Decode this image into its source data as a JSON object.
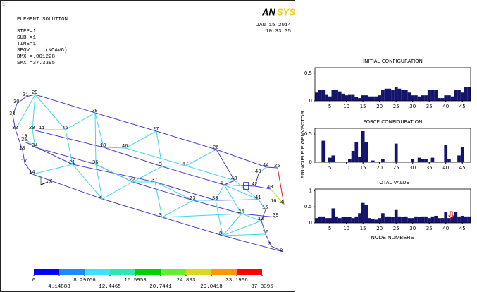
{
  "ansys": {
    "corner": "1",
    "header": "ELEMENT SOLUTION",
    "step": "STEP=1",
    "sub": "SUB =1",
    "time": "TIME=1",
    "seqv": "SEQV",
    "navg": "(NOAVG)",
    "dmx": "DMX =.001228",
    "smx": "SMX =37.3395",
    "date": "JAN 15 2014",
    "clock": "10:33:35",
    "logo": "AN",
    "logo_sys": "SYS",
    "axis_x": "X",
    "node_labels": [
      "31",
      "29",
      "30",
      "33",
      "32",
      "20",
      "11",
      "19",
      "35",
      "45",
      "28",
      "34",
      "18",
      "10",
      "46",
      "27",
      "17",
      "21",
      "36",
      "9",
      "47",
      "14",
      "26",
      "22",
      "37",
      "44",
      "25",
      "48",
      "43",
      "5",
      "42",
      "40",
      "23",
      "38",
      "41",
      "16",
      "4",
      "2",
      "3",
      "15",
      "24",
      "39",
      "13",
      "12",
      "8",
      "7",
      "6"
    ],
    "colorbar": {
      "ticks": [
        0,
        4.14883,
        8.29766,
        12.4465,
        16.5953,
        20.7441,
        24.893,
        29.0418,
        33.1906,
        37.3395
      ],
      "colors": [
        "#0000ff",
        "#1a8cff",
        "#40e0ff",
        "#2ee8b0",
        "#00d000",
        "#66ee33",
        "#d8d820",
        "#ff9900",
        "#ff0000"
      ]
    }
  },
  "y_axis_label": "PRINCIPLE EIGENVECTOR",
  "x_axis_label": "NODE NUMBERS",
  "chart_data": [
    {
      "type": "bar",
      "title": "INITIAL CONFIGURATION",
      "color": "#14146e",
      "x": [
        1,
        2,
        3,
        4,
        5,
        6,
        7,
        8,
        9,
        10,
        11,
        12,
        13,
        14,
        15,
        16,
        17,
        18,
        19,
        20,
        21,
        22,
        23,
        24,
        25,
        26,
        27,
        28,
        29,
        30,
        31,
        32,
        33,
        34,
        35,
        36,
        37,
        38,
        39,
        40,
        41,
        42,
        43,
        44,
        45,
        46,
        47
      ],
      "values": [
        0.15,
        0.2,
        0.2,
        0.12,
        0.08,
        0.2,
        0.2,
        0.17,
        0.13,
        0.1,
        0.12,
        0.12,
        0.07,
        0.05,
        0.1,
        0.1,
        0.08,
        0.08,
        0.08,
        0.1,
        0.2,
        0.22,
        0.22,
        0.2,
        0.25,
        0.22,
        0.2,
        0.2,
        0.15,
        0.1,
        0.1,
        0.08,
        0.1,
        0.1,
        0.2,
        0.2,
        0.2,
        0.05,
        0.05,
        0.1,
        0.1,
        0.08,
        0.2,
        0.2,
        0.15,
        0.25,
        0.25
      ],
      "xlim": [
        0.5,
        47.5
      ],
      "xticks": [
        5,
        10,
        15,
        20,
        25,
        30,
        35,
        40,
        45
      ],
      "ylim": [
        0,
        0.6
      ],
      "yticks": [
        0,
        0.5
      ]
    },
    {
      "type": "bar",
      "title": "FORCE CONFIGURATION",
      "color": "#14146e",
      "x": [
        1,
        2,
        3,
        4,
        5,
        6,
        7,
        8,
        9,
        10,
        11,
        12,
        13,
        14,
        15,
        16,
        17,
        18,
        19,
        20,
        21,
        22,
        23,
        24,
        25,
        26,
        27,
        28,
        29,
        30,
        31,
        32,
        33,
        34,
        35,
        36,
        37,
        38,
        39,
        40,
        41,
        42,
        43,
        44,
        45,
        46,
        47
      ],
      "values": [
        0,
        0,
        0.38,
        0,
        0.08,
        0.12,
        0,
        0,
        0,
        0,
        0.05,
        0.2,
        0.35,
        0.1,
        0.55,
        0.35,
        0,
        0.03,
        0,
        0,
        0.05,
        0,
        0,
        0,
        0.33,
        0,
        0,
        0,
        0,
        0.05,
        0,
        0.08,
        0.05,
        0.05,
        0,
        0.08,
        0,
        0,
        0,
        0.3,
        0.05,
        0,
        0,
        0.12,
        0.27,
        0,
        0
      ],
      "xlim": [
        0.5,
        47.5
      ],
      "xticks": [
        5,
        10,
        15,
        20,
        25,
        30,
        35,
        40,
        45
      ],
      "ylim": [
        0,
        0.6
      ],
      "yticks": [
        0,
        0.5
      ]
    },
    {
      "type": "bar",
      "title": "TOTAL VALUE",
      "color": "#14146e",
      "x": [
        1,
        2,
        3,
        4,
        5,
        6,
        7,
        8,
        9,
        10,
        11,
        12,
        13,
        14,
        15,
        16,
        17,
        18,
        19,
        20,
        21,
        22,
        23,
        24,
        25,
        26,
        27,
        28,
        29,
        30,
        31,
        32,
        33,
        34,
        35,
        36,
        37,
        38,
        39,
        40,
        41,
        42,
        43,
        44,
        45,
        46,
        47
      ],
      "values": [
        0.15,
        0.2,
        0.2,
        0.15,
        0.15,
        0.45,
        0.2,
        0.15,
        0.18,
        0.18,
        0.18,
        0.15,
        0.2,
        0.3,
        0.62,
        0.55,
        0.15,
        0.12,
        0.1,
        0.15,
        0.3,
        0.2,
        0.2,
        0.18,
        0.4,
        0.2,
        0.18,
        0.2,
        0.15,
        0.15,
        0.2,
        0.18,
        0.2,
        0.2,
        0.15,
        0.2,
        0.22,
        0.15,
        0.15,
        0.35,
        0.15,
        0.2,
        0.35,
        0.2,
        0.22,
        0.2,
        0.2
      ],
      "xlim": [
        0.5,
        47.5
      ],
      "xticks": [
        5,
        10,
        15,
        20,
        25,
        30,
        35,
        40,
        45
      ],
      "ylim": [
        0,
        1.05
      ],
      "yticks": [
        0,
        0.5,
        1
      ]
    }
  ]
}
